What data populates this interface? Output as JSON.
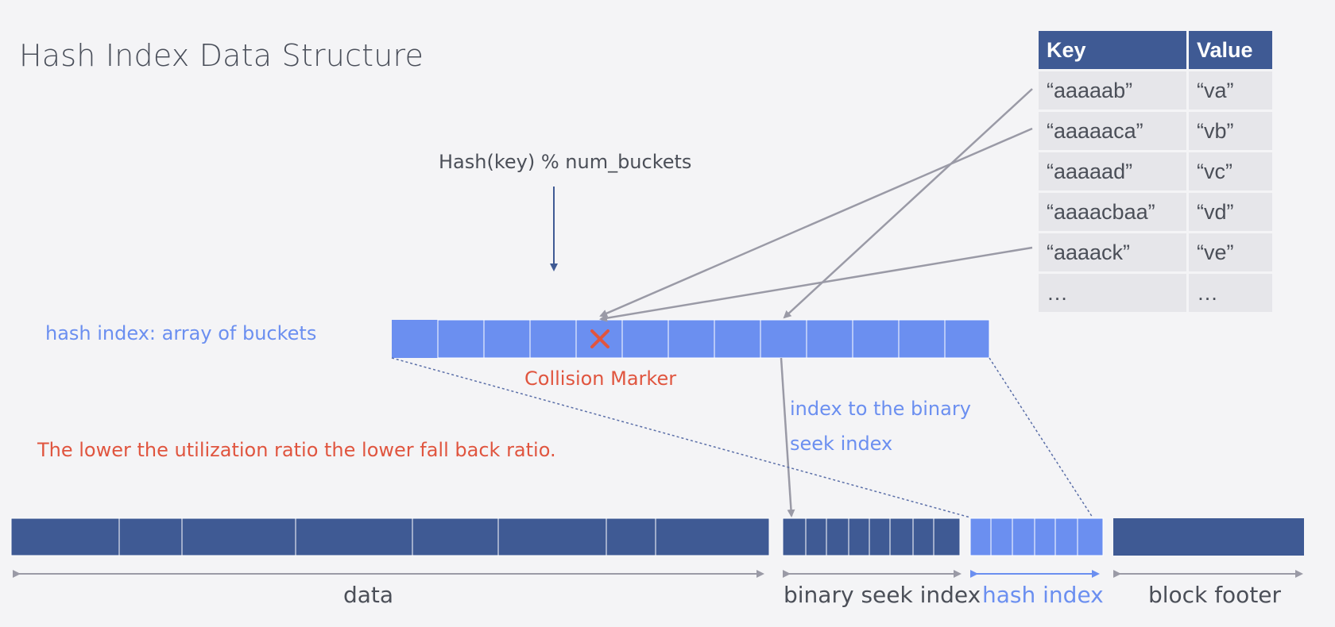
{
  "title": "Hash Index Data Structure",
  "table": {
    "headers": [
      "Key",
      "Value"
    ],
    "rows": [
      [
        "“aaaaab”",
        "“va”"
      ],
      [
        "“aaaaaca”",
        "“vb”"
      ],
      [
        "“aaaaad”",
        "“vc”"
      ],
      [
        "“aaaacbaa”",
        "“vd”"
      ],
      [
        "“aaaack”",
        "“ve”"
      ],
      [
        "…",
        "…"
      ]
    ]
  },
  "labels": {
    "formula": "Hash(key) % num_buckets",
    "hash_index_array": "hash index: array of buckets",
    "collision_marker": "Collision Marker",
    "index_to_binary": "index to the binary",
    "seek_index": "seek index",
    "utilization_note": "The lower the utilization ratio the lower fall back ratio."
  },
  "segments": {
    "data": "data",
    "binary_seek_index": "binary seek index",
    "hash_index": "hash index",
    "block_footer": "block footer"
  },
  "colors": {
    "bucket_fill": "#6b8ff0",
    "block_fill": "#3f5a94",
    "accent_red": "#e0553f",
    "text_gray": "#4b4f58",
    "line_gray": "#9a9aa6"
  }
}
